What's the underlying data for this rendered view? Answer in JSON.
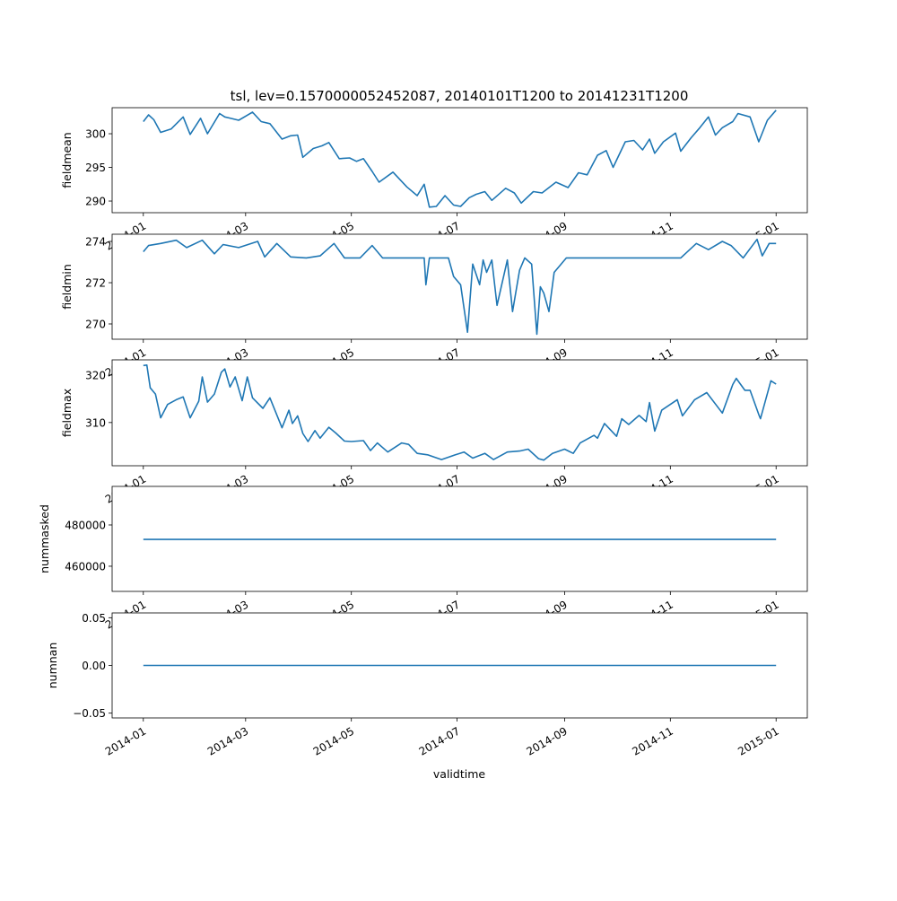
{
  "chart_data": [
    {
      "type": "line",
      "title": "tsl, lev=0.1570000052452087, 20140101T1200 to 20141231T1200",
      "ylabel": "fieldmean",
      "xlabel": "",
      "x_unit": "days since 2014-01-01",
      "xlim_days": [
        -18,
        383
      ],
      "ylim": [
        288.27,
        303.87
      ],
      "yticks": [
        290,
        295,
        300
      ],
      "ytick_labels": [
        "290",
        "295",
        "300"
      ],
      "color": "#1f77b4",
      "points": [
        [
          0,
          301.8
        ],
        [
          3,
          302.8
        ],
        [
          6,
          302.1
        ],
        [
          10,
          300.2
        ],
        [
          16,
          300.7
        ],
        [
          23,
          302.5
        ],
        [
          27,
          299.9
        ],
        [
          33,
          302.3
        ],
        [
          37,
          300.0
        ],
        [
          44,
          303.0
        ],
        [
          47,
          302.5
        ],
        [
          55,
          302.0
        ],
        [
          63,
          303.2
        ],
        [
          68,
          301.8
        ],
        [
          73,
          301.5
        ],
        [
          80,
          299.2
        ],
        [
          85,
          299.7
        ],
        [
          89,
          299.8
        ],
        [
          92,
          296.5
        ],
        [
          98,
          297.8
        ],
        [
          103,
          298.2
        ],
        [
          107,
          298.7
        ],
        [
          113,
          296.3
        ],
        [
          119,
          296.4
        ],
        [
          123,
          295.9
        ],
        [
          127,
          296.3
        ],
        [
          132,
          294.4
        ],
        [
          136,
          292.8
        ],
        [
          144,
          294.3
        ],
        [
          152,
          292.1
        ],
        [
          158,
          290.8
        ],
        [
          162,
          292.5
        ],
        [
          165,
          289.1
        ],
        [
          169,
          289.2
        ],
        [
          174,
          290.8
        ],
        [
          179,
          289.4
        ],
        [
          183,
          289.2
        ],
        [
          188,
          290.5
        ],
        [
          192,
          291.0
        ],
        [
          197,
          291.4
        ],
        [
          201,
          290.1
        ],
        [
          209,
          291.9
        ],
        [
          214,
          291.2
        ],
        [
          218,
          289.7
        ],
        [
          225,
          291.4
        ],
        [
          230,
          291.2
        ],
        [
          238,
          292.8
        ],
        [
          245,
          292.0
        ],
        [
          251,
          294.2
        ],
        [
          256,
          293.9
        ],
        [
          262,
          296.8
        ],
        [
          267,
          297.5
        ],
        [
          271,
          295.0
        ],
        [
          278,
          298.8
        ],
        [
          283,
          299.0
        ],
        [
          288,
          297.6
        ],
        [
          292,
          299.2
        ],
        [
          295,
          297.1
        ],
        [
          300,
          298.8
        ],
        [
          307,
          300.1
        ],
        [
          310,
          297.4
        ],
        [
          316,
          299.4
        ],
        [
          321,
          300.9
        ],
        [
          326,
          302.5
        ],
        [
          330,
          299.8
        ],
        [
          334,
          300.9
        ],
        [
          340,
          301.8
        ],
        [
          343,
          303.0
        ],
        [
          350,
          302.5
        ],
        [
          355,
          298.8
        ],
        [
          360,
          302.0
        ],
        [
          365,
          303.5
        ]
      ]
    },
    {
      "type": "line",
      "ylabel": "fieldmin",
      "x_unit": "days since 2014-01-01",
      "xlim_days": [
        -18,
        383
      ],
      "ylim": [
        269.26,
        274.35
      ],
      "yticks": [
        270,
        272,
        274
      ],
      "ytick_labels": [
        "270",
        "272",
        "274"
      ],
      "color": "#1f77b4",
      "points": [
        [
          0,
          273.5
        ],
        [
          3,
          273.8
        ],
        [
          10,
          273.9
        ],
        [
          19,
          274.06
        ],
        [
          25,
          273.7
        ],
        [
          34,
          274.06
        ],
        [
          41,
          273.4
        ],
        [
          46,
          273.85
        ],
        [
          55,
          273.7
        ],
        [
          66,
          274.0
        ],
        [
          70,
          273.25
        ],
        [
          77,
          273.9
        ],
        [
          85,
          273.25
        ],
        [
          94,
          273.2
        ],
        [
          102,
          273.3
        ],
        [
          110,
          273.9
        ],
        [
          116,
          273.2
        ],
        [
          125,
          273.2
        ],
        [
          132,
          273.8
        ],
        [
          138,
          273.2
        ],
        [
          162,
          273.2
        ],
        [
          163,
          271.9
        ],
        [
          165,
          273.2
        ],
        [
          176,
          273.2
        ],
        [
          179,
          272.3
        ],
        [
          183,
          271.9
        ],
        [
          187,
          269.6
        ],
        [
          190,
          272.9
        ],
        [
          194,
          271.9
        ],
        [
          196,
          273.1
        ],
        [
          198,
          272.5
        ],
        [
          201,
          273.1
        ],
        [
          204,
          270.9
        ],
        [
          210,
          273.1
        ],
        [
          213,
          270.6
        ],
        [
          217,
          272.6
        ],
        [
          220,
          273.2
        ],
        [
          224,
          272.9
        ],
        [
          227,
          269.5
        ],
        [
          229,
          271.8
        ],
        [
          231,
          271.5
        ],
        [
          234,
          270.6
        ],
        [
          237,
          272.5
        ],
        [
          244,
          273.2
        ],
        [
          310,
          273.2
        ],
        [
          319,
          273.9
        ],
        [
          326,
          273.6
        ],
        [
          334,
          274.0
        ],
        [
          339,
          273.8
        ],
        [
          346,
          273.2
        ],
        [
          354,
          274.1
        ],
        [
          357,
          273.3
        ],
        [
          361,
          273.9
        ],
        [
          365,
          273.9
        ]
      ]
    },
    {
      "type": "line",
      "ylabel": "fieldmax",
      "x_unit": "days since 2014-01-01",
      "xlim_days": [
        -18,
        383
      ],
      "ylim": [
        300.9,
        323.2
      ],
      "yticks": [
        310,
        320
      ],
      "ytick_labels": [
        "310",
        "320"
      ],
      "color": "#1f77b4",
      "points": [
        [
          0,
          322
        ],
        [
          2,
          322.1
        ],
        [
          4,
          317.3
        ],
        [
          7,
          316
        ],
        [
          10,
          311
        ],
        [
          14,
          313.8
        ],
        [
          19,
          314.8
        ],
        [
          23,
          315.4
        ],
        [
          27,
          311
        ],
        [
          32,
          314.5
        ],
        [
          34,
          319.6
        ],
        [
          37,
          314.3
        ],
        [
          41,
          316
        ],
        [
          45,
          320.6
        ],
        [
          47,
          321.3
        ],
        [
          50,
          317.5
        ],
        [
          53,
          319.6
        ],
        [
          57,
          314.6
        ],
        [
          60,
          319.6
        ],
        [
          63,
          315.2
        ],
        [
          69,
          313
        ],
        [
          73,
          315.2
        ],
        [
          80,
          308.9
        ],
        [
          84,
          312.6
        ],
        [
          86,
          309.8
        ],
        [
          89,
          311.4
        ],
        [
          92,
          307.7
        ],
        [
          95,
          306
        ],
        [
          99,
          308.3
        ],
        [
          102,
          306.7
        ],
        [
          107,
          309
        ],
        [
          111,
          307.8
        ],
        [
          116,
          306.1
        ],
        [
          120,
          306
        ],
        [
          127,
          306.2
        ],
        [
          131,
          304.1
        ],
        [
          135,
          305.7
        ],
        [
          141,
          303.8
        ],
        [
          149,
          305.7
        ],
        [
          153,
          305.4
        ],
        [
          158,
          303.5
        ],
        [
          164,
          303.2
        ],
        [
          172,
          302.2
        ],
        [
          180,
          303.2
        ],
        [
          185,
          303.8
        ],
        [
          190,
          302.5
        ],
        [
          197,
          303.5
        ],
        [
          202,
          302.2
        ],
        [
          210,
          303.8
        ],
        [
          217,
          304
        ],
        [
          222,
          304.4
        ],
        [
          228,
          302.4
        ],
        [
          231,
          302.1
        ],
        [
          236,
          303.5
        ],
        [
          243,
          304.4
        ],
        [
          248,
          303.5
        ],
        [
          252,
          305.7
        ],
        [
          260,
          307.3
        ],
        [
          262,
          306.7
        ],
        [
          266,
          309.8
        ],
        [
          273,
          307.1
        ],
        [
          276,
          310.8
        ],
        [
          280,
          309.6
        ],
        [
          286,
          311.5
        ],
        [
          290,
          310.2
        ],
        [
          292,
          314.2
        ],
        [
          295,
          308.2
        ],
        [
          299,
          312.6
        ],
        [
          308,
          314.8
        ],
        [
          311,
          311.4
        ],
        [
          318,
          314.8
        ],
        [
          325,
          316.3
        ],
        [
          334,
          312
        ],
        [
          340,
          318
        ],
        [
          342,
          319.3
        ],
        [
          347,
          316.8
        ],
        [
          350,
          316.8
        ],
        [
          355,
          311.7
        ],
        [
          356,
          310.8
        ],
        [
          360,
          316.1
        ],
        [
          362,
          318.8
        ],
        [
          365,
          318.1
        ]
      ]
    },
    {
      "type": "line",
      "ylabel": "nummasked",
      "x_unit": "days since 2014-01-01",
      "xlim_days": [
        -18,
        383
      ],
      "ylim": [
        447800,
        498700
      ],
      "yticks": [
        460000,
        480000
      ],
      "ytick_labels": [
        "460000",
        "480000"
      ],
      "color": "#1f77b4",
      "points": [
        [
          0,
          473000
        ],
        [
          365,
          473000
        ]
      ]
    },
    {
      "type": "line",
      "ylabel": "numnan",
      "xlabel": "validtime",
      "x_unit": "days since 2014-01-01",
      "xlim_days": [
        -18,
        383
      ],
      "ylim": [
        -0.055,
        0.055
      ],
      "yticks": [
        -0.05,
        0.0,
        0.05
      ],
      "ytick_labels": [
        "−0.05",
        "0.00",
        "0.05"
      ],
      "color": "#1f77b4",
      "points": [
        [
          0,
          0
        ],
        [
          365,
          0
        ]
      ]
    }
  ],
  "xticks_days": [
    0,
    59,
    120,
    181,
    243,
    304,
    365
  ],
  "xtick_labels": [
    "2014-01",
    "2014-03",
    "2014-05",
    "2014-07",
    "2014-09",
    "2014-11",
    "2015-01"
  ]
}
